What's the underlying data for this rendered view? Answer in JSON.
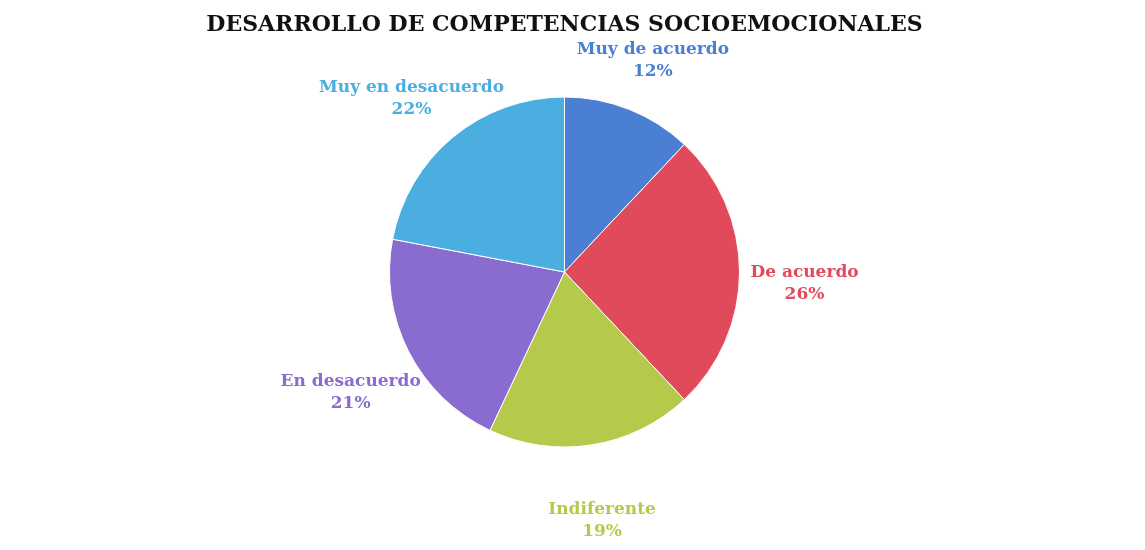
{
  "chart_data": {
    "type": "pie",
    "title": "DESARROLLO DE COMPETENCIAS SOCIOEMOCIONALES",
    "categories": [
      "Muy de acuerdo",
      "De acuerdo",
      "Indiferente",
      "En desacuerdo",
      "Muy en desacuerdo"
    ],
    "values": [
      12,
      26,
      19,
      21,
      22
    ],
    "colors": [
      "#4a7fd4",
      "#e04a5a",
      "#b5c94a",
      "#8a6bd0",
      "#4aaee0"
    ],
    "value_labels": [
      "12%",
      "26%",
      "19%",
      "21%",
      "22%"
    ],
    "legend": false
  }
}
